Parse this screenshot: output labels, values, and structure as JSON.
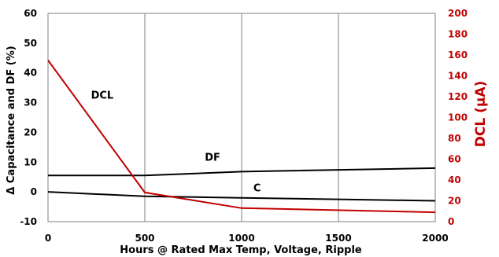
{
  "chart_data": {
    "type": "line",
    "xlabel": "Hours @ Rated Max Temp, Voltage, Ripple",
    "ylabel": "Δ Capacitance and DF (%)",
    "y2label": "DCL (µA)",
    "xlim": [
      0,
      2000
    ],
    "ylim": [
      -10,
      60
    ],
    "y2lim": [
      0,
      200
    ],
    "x_ticks": [
      0,
      500,
      1000,
      1500,
      2000
    ],
    "y_ticks": [
      -10,
      0,
      10,
      20,
      30,
      40,
      50,
      60
    ],
    "y2_ticks": [
      0,
      20,
      40,
      60,
      80,
      100,
      120,
      140,
      160,
      180,
      200
    ],
    "grid": "vertical",
    "colors": {
      "primary": "#000000",
      "secondary": "#c00000",
      "grid": "#808080"
    },
    "series": [
      {
        "name": "DF",
        "axis": "left",
        "color": "#000000",
        "x": [
          0,
          500,
          1000,
          2000
        ],
        "y": [
          5.5,
          5.5,
          6.8,
          8.0
        ]
      },
      {
        "name": "C",
        "axis": "left",
        "color": "#000000",
        "x": [
          0,
          500,
          1000,
          2000
        ],
        "y": [
          0,
          -1.5,
          -2.0,
          -3.0
        ]
      },
      {
        "name": "DCL",
        "axis": "right",
        "color": "#c00000",
        "x": [
          0,
          500,
          1000,
          2000
        ],
        "y": [
          155,
          28,
          13,
          9
        ]
      }
    ]
  }
}
